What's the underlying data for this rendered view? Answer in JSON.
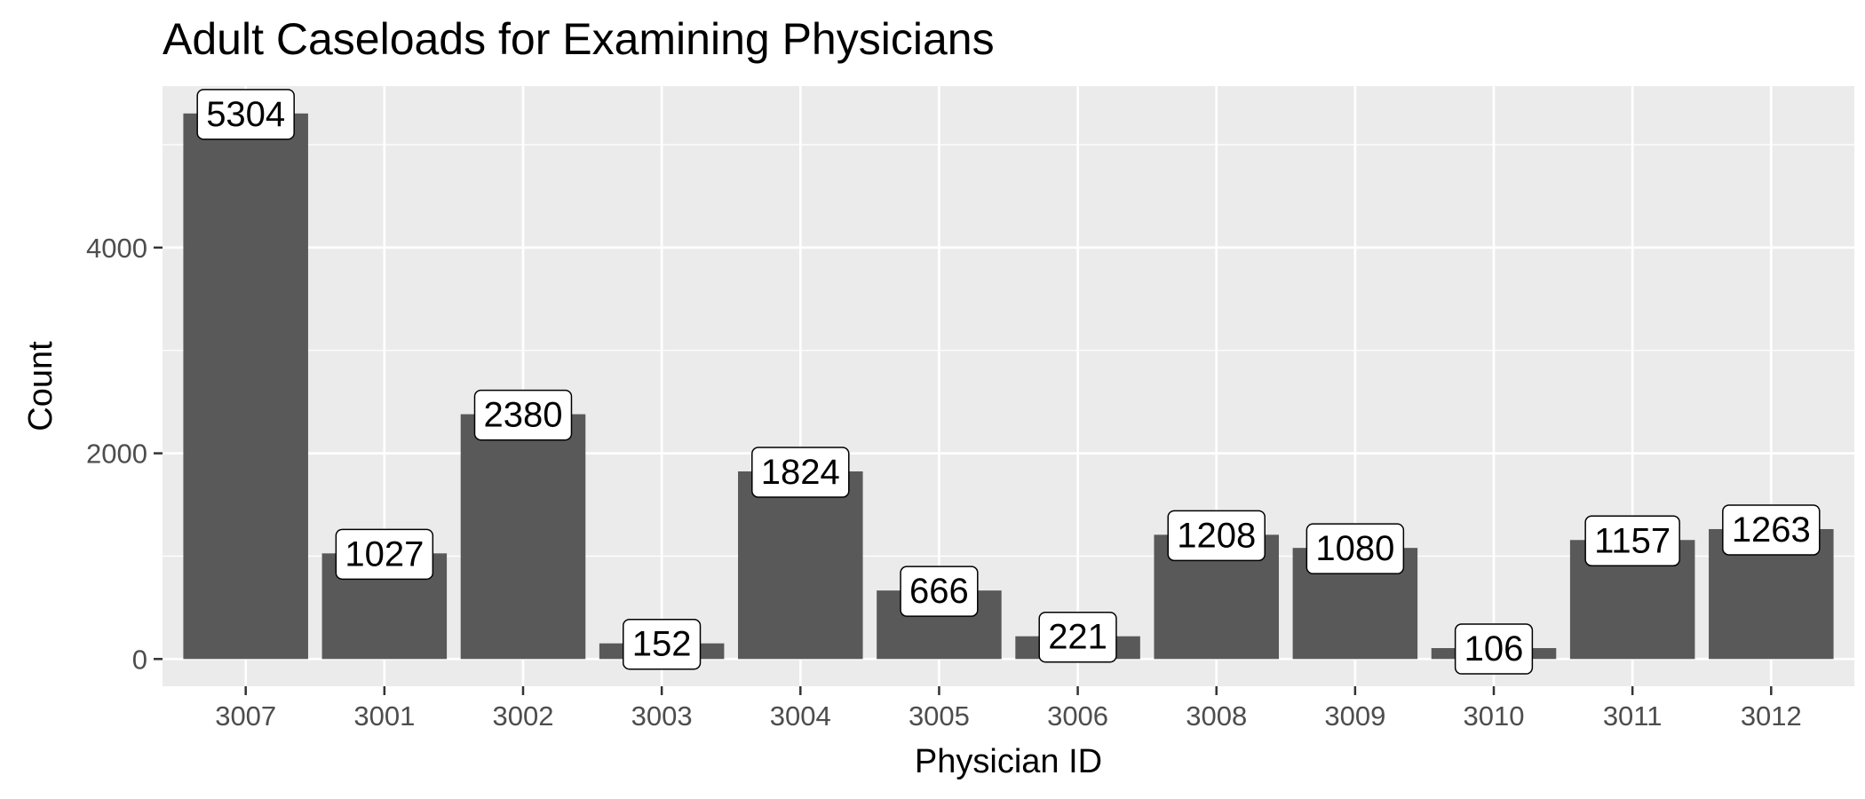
{
  "chart_data": {
    "type": "bar",
    "title": "Adult Caseloads for Examining Physicians",
    "xlabel": "Physician ID",
    "ylabel": "Count",
    "categories": [
      "3007",
      "3001",
      "3002",
      "3003",
      "3004",
      "3005",
      "3006",
      "3008",
      "3009",
      "3010",
      "3011",
      "3012"
    ],
    "values": [
      5304,
      1027,
      2380,
      152,
      1824,
      666,
      221,
      1208,
      1080,
      106,
      1157,
      1263
    ],
    "data_labels": [
      "5304",
      "1027",
      "2380",
      "152",
      "1824",
      "666",
      "221",
      "1208",
      "1080",
      "106",
      "1157",
      "1263"
    ],
    "yticks": [
      0,
      2000,
      4000
    ],
    "ytick_labels": [
      "0",
      "2000",
      "4000"
    ],
    "ylim": [
      -265,
      5570
    ],
    "grid": true,
    "legend": "none",
    "colors": {
      "panel": "#ebebeb",
      "grid": "#ffffff",
      "bar": "#595959",
      "label_fill": "#ffffff",
      "label_border": "#000000",
      "tick_text": "#4d4d4d",
      "tick_mark": "#333333"
    }
  }
}
